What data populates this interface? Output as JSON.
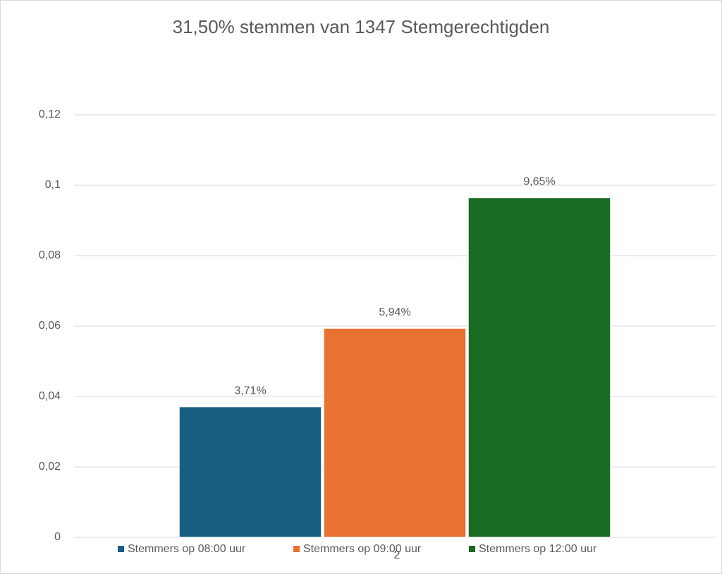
{
  "chart_data": {
    "type": "bar",
    "title": "31,50% stemmen van 1347 Stemgerechtigden",
    "categories": [
      "2"
    ],
    "series": [
      {
        "name": "Stemmers op 08:00 uur",
        "color": "#175e83",
        "values": [
          0.0371
        ],
        "value_labels": [
          "3,71%"
        ]
      },
      {
        "name": "Stemmers op 09:00 uur",
        "color": "#e97132",
        "values": [
          0.0594
        ],
        "value_labels": [
          "5,94%"
        ]
      },
      {
        "name": "Stemmers op 12:00 uur",
        "color": "#196b24",
        "values": [
          0.0965
        ],
        "value_labels": [
          "9,65%"
        ]
      }
    ],
    "ylim": [
      0,
      0.12
    ],
    "yticks": [
      0,
      {
        "value": 0.02,
        "label": "0,02"
      },
      {
        "value": 0.04,
        "label": "0,04"
      },
      {
        "value": 0.06,
        "label": "0,06"
      },
      {
        "value": 0.08,
        "label": "0,08"
      },
      {
        "value": 0.1,
        "label": "0,1"
      },
      {
        "value": 0.12,
        "label": "0,12"
      }
    ],
    "grid": true,
    "legend": "bottom"
  }
}
